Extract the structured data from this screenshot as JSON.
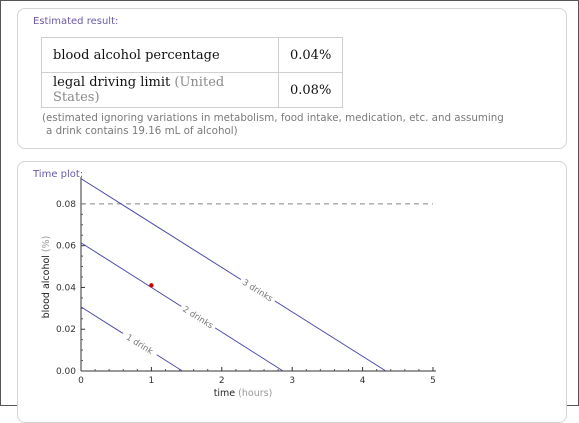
{
  "result_pod": {
    "title": "Estimated result:",
    "rows": [
      {
        "label": "blood alcohol percentage",
        "qualifier": "",
        "value": "0.04%"
      },
      {
        "label": "legal driving limit",
        "qualifier": "(United States)",
        "value": "0.08%"
      }
    ],
    "note_line1": "(estimated ignoring variations in metabolism, food intake, medication, etc. and assuming",
    "note_line2": "a drink contains 19.16 mL of alcohol)"
  },
  "plot_pod": {
    "title": "Time plot:"
  },
  "chart_data": {
    "type": "line",
    "xlabel": "time",
    "xlabel_unit": "(hours)",
    "ylabel": "blood alcohol",
    "ylabel_unit": "(%)",
    "xlim": [
      0,
      5
    ],
    "ylim": [
      0,
      0.09
    ],
    "x_ticks": [
      "0",
      "1",
      "2",
      "3",
      "4",
      "5"
    ],
    "y_ticks": [
      "0.00",
      "0.02",
      "0.04",
      "0.06",
      "0.08"
    ],
    "series": [
      {
        "name": "1 drink",
        "points": [
          [
            0,
            0.0307
          ],
          [
            1.44,
            0
          ]
        ],
        "color": "#4b4bab"
      },
      {
        "name": "2 drinks",
        "points": [
          [
            0,
            0.0614
          ],
          [
            2.87,
            0
          ]
        ],
        "color": "#4b4bab"
      },
      {
        "name": "3 drinks",
        "points": [
          [
            0,
            0.0921
          ],
          [
            4.33,
            0
          ]
        ],
        "color": "#4b4bab"
      }
    ],
    "reference_line": {
      "y": 0.08,
      "style": "dashed",
      "color": "#888888"
    },
    "marker": {
      "x": 1,
      "y": 0.041,
      "color": "#cc0000"
    }
  }
}
